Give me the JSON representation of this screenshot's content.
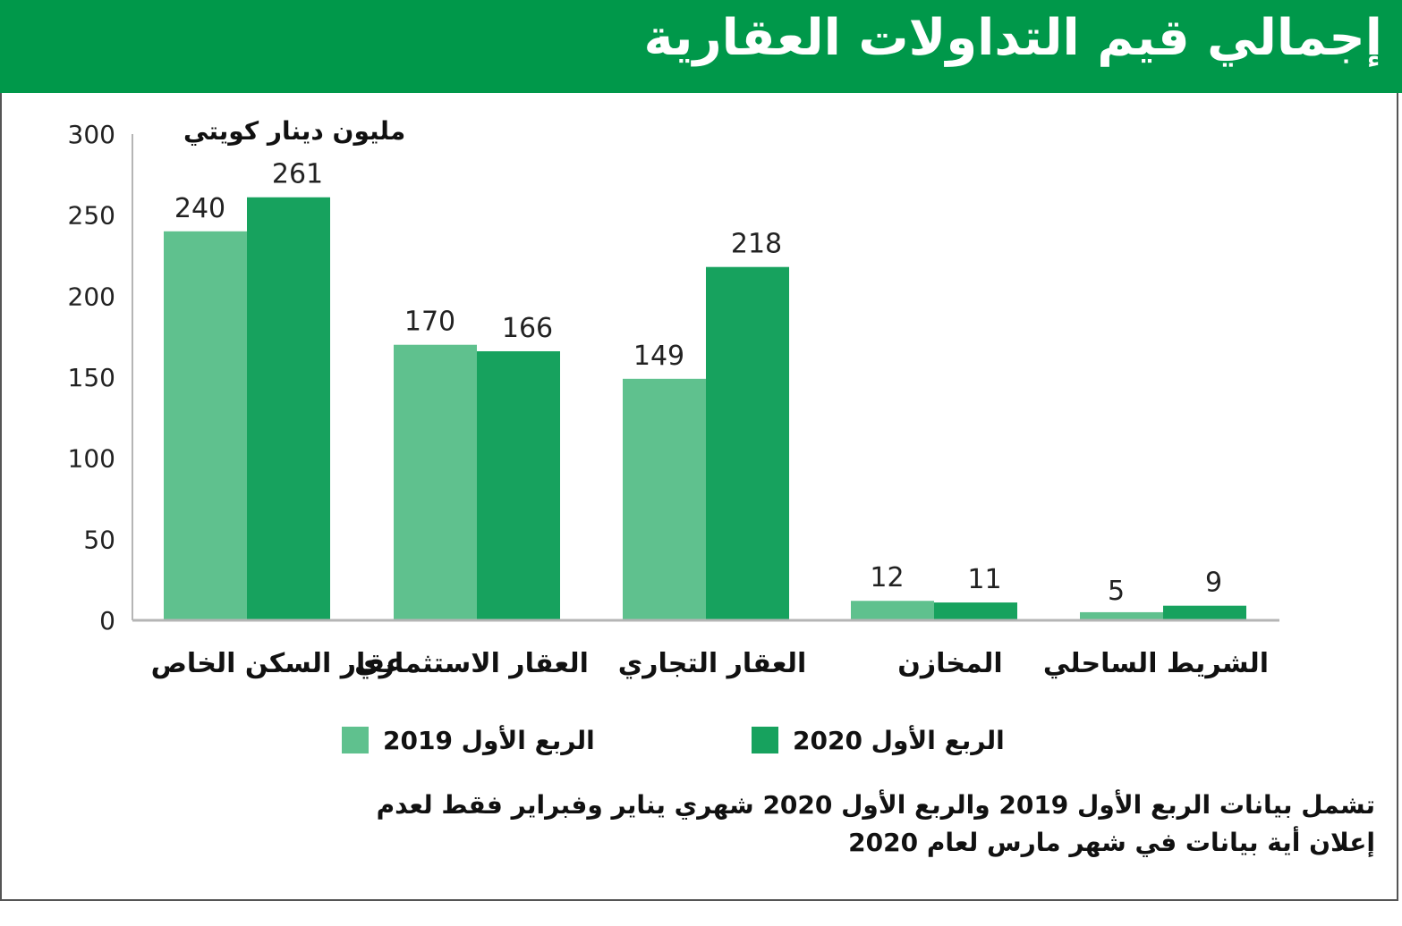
{
  "title": "إجمالي قيم التداولات العقارية",
  "unit_label": "مليون دينار كويتي",
  "footnote": {
    "line1": "تشمل بيانات الربع الأول 2019 والربع الأول 2020 شهري يناير وفبراير فقط لعدم",
    "line2": "إعلان أية بيانات في شهر مارس لعام 2020"
  },
  "colors": {
    "title_bg": "#00984a",
    "series_2019": "#5fc18e",
    "series_2020": "#17a25e",
    "axis": "#b5b5b5"
  },
  "chart_data": {
    "type": "bar",
    "title": "إجمالي قيم التداولات العقارية",
    "ylabel": "مليون دينار كويتي",
    "xlabel": "",
    "ylim": [
      0,
      300
    ],
    "yticks": [
      0,
      50,
      100,
      150,
      200,
      250,
      300
    ],
    "categories": [
      "عقار السكن الخاص",
      "العقار الاستثماري",
      "العقار التجاري",
      "المخازن",
      "الشريط الساحلي"
    ],
    "series": [
      {
        "name": "الربع الأول 2019",
        "values": [
          240,
          170,
          149,
          12,
          5
        ]
      },
      {
        "name": "الربع الأول 2020",
        "values": [
          261,
          166,
          218,
          11,
          9
        ]
      }
    ],
    "legend_position": "bottom"
  }
}
